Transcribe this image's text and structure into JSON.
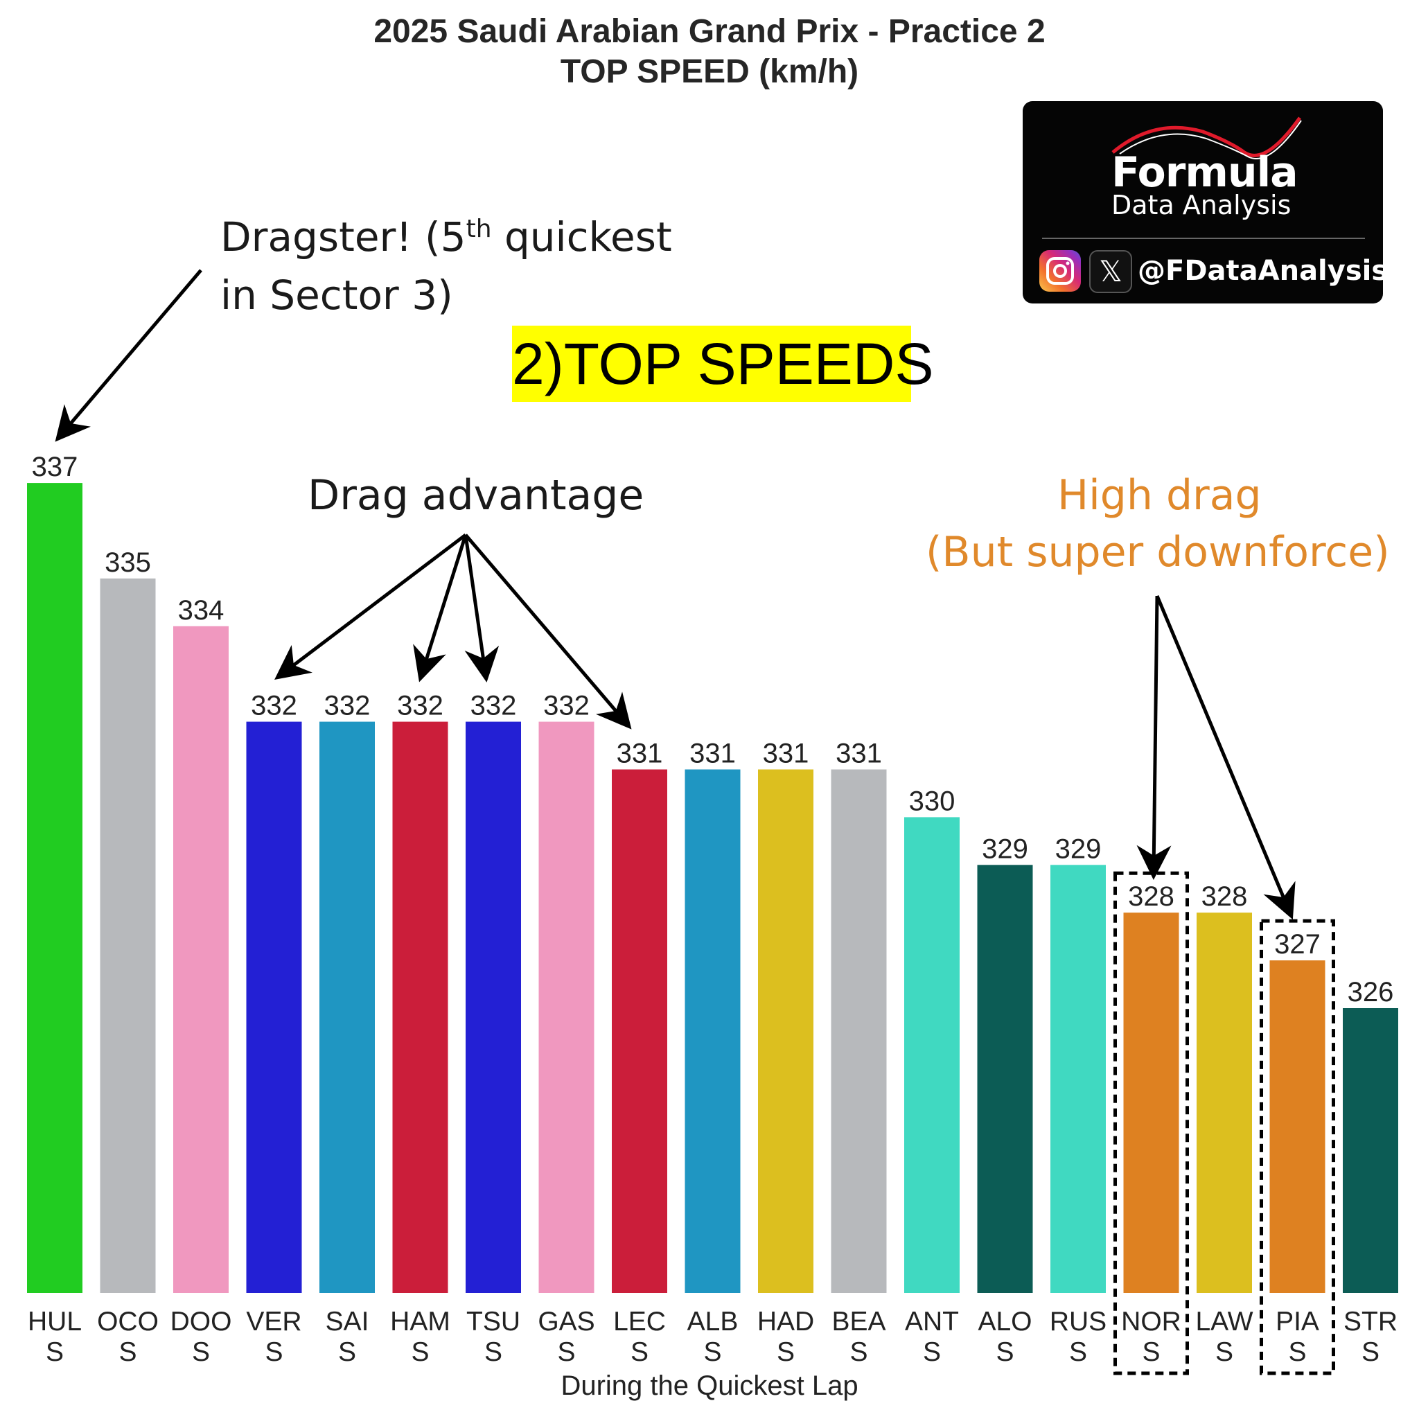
{
  "chart_data": {
    "type": "bar",
    "title": "2025 Saudi Arabian Grand Prix - Practice 2",
    "subtitle": "TOP SPEED (km/h)",
    "xlabel": "During the Quickest Lap",
    "ylabel": "",
    "ylim": [
      0,
      337
    ],
    "grid": false,
    "categories": [
      [
        "HUL",
        "S"
      ],
      [
        "OCO",
        "S"
      ],
      [
        "DOO",
        "S"
      ],
      [
        "VER",
        "S"
      ],
      [
        "SAI",
        "S"
      ],
      [
        "HAM",
        "S"
      ],
      [
        "TSU",
        "S"
      ],
      [
        "GAS",
        "S"
      ],
      [
        "LEC",
        "S"
      ],
      [
        "ALB",
        "S"
      ],
      [
        "HAD",
        "S"
      ],
      [
        "BEA",
        "S"
      ],
      [
        "ANT",
        "S"
      ],
      [
        "ALO",
        "S"
      ],
      [
        "RUS",
        "S"
      ],
      [
        "NOR",
        "S"
      ],
      [
        "LAW",
        "S"
      ],
      [
        "PIA",
        "S"
      ],
      [
        "STR",
        "S"
      ]
    ],
    "values": [
      337,
      335,
      334,
      332,
      332,
      332,
      332,
      332,
      331,
      331,
      331,
      331,
      330,
      329,
      329,
      328,
      328,
      327,
      326
    ],
    "bar_colors": [
      "#21cc21",
      "#b7b9bc",
      "#f098bf",
      "#2320d4",
      "#1f96c2",
      "#cb1e3a",
      "#2320d4",
      "#f098bf",
      "#cb1e3a",
      "#1f96c2",
      "#dcbf1f",
      "#b7b9bc",
      "#40d9c1",
      "#0c5c55",
      "#40d9c1",
      "#de8121",
      "#dcbf1f",
      "#de8121",
      "#0c5c55"
    ],
    "highlighted_boxes": [
      "NOR",
      "PIA"
    ]
  },
  "annotations": {
    "dragster_line1_pre": "Dragster! (5",
    "dragster_sup": "th",
    "dragster_line1_post": " quickest",
    "dragster_line2": "in Sector 3)",
    "top_speeds": "2)TOP SPEEDS",
    "drag_advantage": "Drag advantage",
    "high_drag_line1": "High drag",
    "high_drag_line2": "(But super downforce)"
  },
  "logo": {
    "word1": "Formula",
    "word2": "Data Analysis",
    "handle": "@FDataAnalysis",
    "icons": [
      "instagram-icon",
      "x-icon"
    ]
  },
  "colors": {
    "annotation_orange": "#e0892b",
    "highlight_yellow": "#ffff00",
    "logo_background": "#050505"
  }
}
